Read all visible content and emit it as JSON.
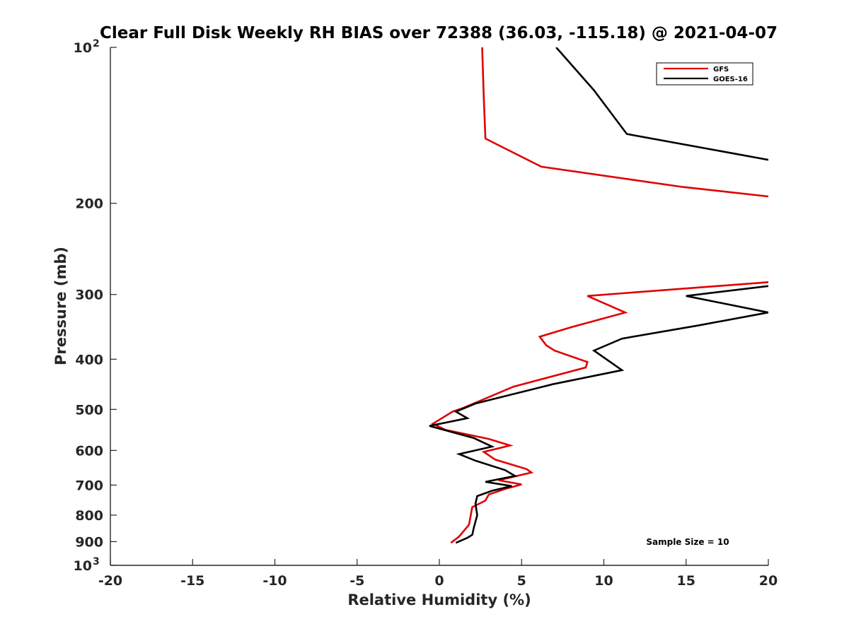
{
  "chart_data": {
    "type": "line",
    "title": "Clear Full Disk Weekly RH BIAS over 72388 (36.03, -115.18) @ 2021-04-07",
    "xlabel": "Relative Humidity (%)",
    "ylabel": "Pressure (mb)",
    "xlim": [
      -20,
      20
    ],
    "ylim": [
      100,
      1000
    ],
    "y_scale": "log",
    "y_reversed": true,
    "grid": false,
    "legend_position": "top-right",
    "x_ticks": [
      "-20",
      "-15",
      "-10",
      "-5",
      "0",
      "5",
      "10",
      "15",
      "20"
    ],
    "y_ticks": [
      {
        "value": 100,
        "base": "10",
        "exp": "2"
      },
      {
        "value": 200,
        "label": "200"
      },
      {
        "value": 300,
        "label": "300"
      },
      {
        "value": 400,
        "label": "400"
      },
      {
        "value": 500,
        "label": "500"
      },
      {
        "value": 600,
        "label": "600"
      },
      {
        "value": 700,
        "label": "700"
      },
      {
        "value": 800,
        "label": "800"
      },
      {
        "value": 900,
        "label": "900"
      },
      {
        "value": 1000,
        "base": "10",
        "exp": "3"
      }
    ],
    "series": [
      {
        "name": "GFS",
        "color": "#e00000",
        "segments": [
          [
            [
              2.6,
              100
            ],
            [
              2.7,
              125
            ],
            [
              2.8,
              150
            ],
            [
              6.2,
              170
            ],
            [
              14.8,
              186
            ],
            [
              20,
              194
            ]
          ],
          [
            [
              20,
              284
            ],
            [
              9.0,
              302
            ],
            [
              11.3,
              325
            ],
            [
              8.0,
              347
            ],
            [
              6.1,
              362
            ],
            [
              6.5,
              376
            ],
            [
              7.0,
              385
            ],
            [
              9.0,
              405
            ],
            [
              8.9,
              415
            ],
            [
              4.5,
              452
            ],
            [
              1.5,
              496
            ],
            [
              0.8,
              505
            ],
            [
              -0.4,
              533
            ],
            [
              0.4,
              548
            ],
            [
              3.0,
              570
            ],
            [
              4.3,
              587
            ],
            [
              2.7,
              604
            ],
            [
              3.4,
              625
            ],
            [
              5.3,
              652
            ],
            [
              5.6,
              662
            ],
            [
              3.6,
              685
            ],
            [
              5.0,
              698
            ],
            [
              4.0,
              712
            ],
            [
              3.0,
              730
            ],
            [
              2.8,
              750
            ],
            [
              2.0,
              772
            ],
            [
              1.8,
              835
            ],
            [
              1.2,
              880
            ],
            [
              0.7,
              905
            ]
          ]
        ]
      },
      {
        "name": "GOES-16",
        "color": "#000000",
        "segments": [
          [
            [
              7.1,
              100
            ],
            [
              9.4,
              121
            ],
            [
              11.4,
              147
            ],
            [
              20.5,
              166
            ]
          ],
          [
            [
              20,
              289
            ],
            [
              15.0,
              302
            ],
            [
              20,
              325
            ],
            [
              15.8,
              344
            ],
            [
              11.1,
              365
            ],
            [
              9.4,
              385
            ],
            [
              11.1,
              420
            ],
            [
              6.9,
              447
            ],
            [
              2.2,
              487
            ],
            [
              1.0,
              505
            ],
            [
              1.7,
              520
            ],
            [
              -0.6,
              538
            ],
            [
              2.1,
              568
            ],
            [
              3.2,
              590
            ],
            [
              1.2,
              610
            ],
            [
              2.2,
              628
            ],
            [
              4.0,
              655
            ],
            [
              4.6,
              672
            ],
            [
              2.8,
              690
            ],
            [
              4.4,
              703
            ],
            [
              3.2,
              718
            ],
            [
              2.3,
              735
            ],
            [
              2.2,
              760
            ],
            [
              2.3,
              800
            ],
            [
              2.1,
              845
            ],
            [
              2.0,
              873
            ],
            [
              1.7,
              885
            ],
            [
              1.0,
              905
            ]
          ]
        ]
      }
    ],
    "annotation": "Sample Size = 10"
  }
}
